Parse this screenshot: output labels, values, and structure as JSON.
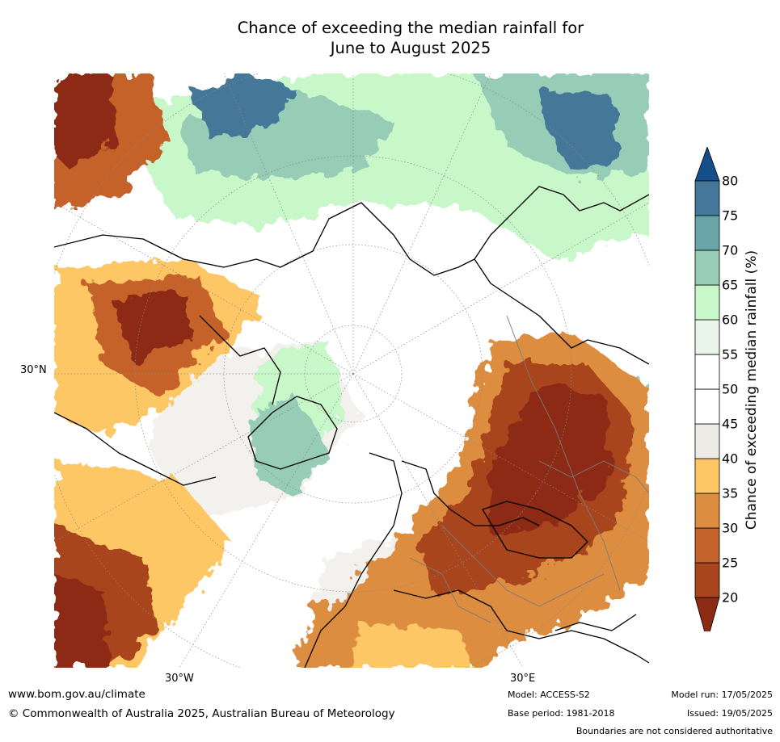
{
  "title_line1": "Chance of exceeding the median rainfall for",
  "title_line2": "June to August 2025",
  "map": {
    "lat_label": "30°N",
    "lon_labels": [
      "30°W",
      "30°E"
    ]
  },
  "colorbar": {
    "title": "Chance of exceeding median rainfall (%)",
    "ticks": [
      "20",
      "25",
      "30",
      "35",
      "40",
      "45",
      "50",
      "55",
      "60",
      "65",
      "70",
      "75",
      "80"
    ],
    "colors": [
      "#8c2a14",
      "#a8451f",
      "#c4622b",
      "#dd8d40",
      "#fdc766",
      "#ecebe6",
      "#ffffff",
      "#ffffff",
      "#eaf5ea",
      "#c8f7c9",
      "#97ccb6",
      "#69a5a9",
      "#447799",
      "#154f8a"
    ]
  },
  "footer": {
    "website": "www.bom.gov.au/climate",
    "copyright": "© Commonwealth of Australia 2025, Australian Bureau of Meteorology",
    "model": "Model: ACCESS-S2",
    "base_period": "Base period: 1981-2018",
    "model_run": "Model run: 17/05/2025",
    "issued": "Issued: 19/05/2025",
    "boundaries": "Boundaries are not considered authoritative"
  }
}
